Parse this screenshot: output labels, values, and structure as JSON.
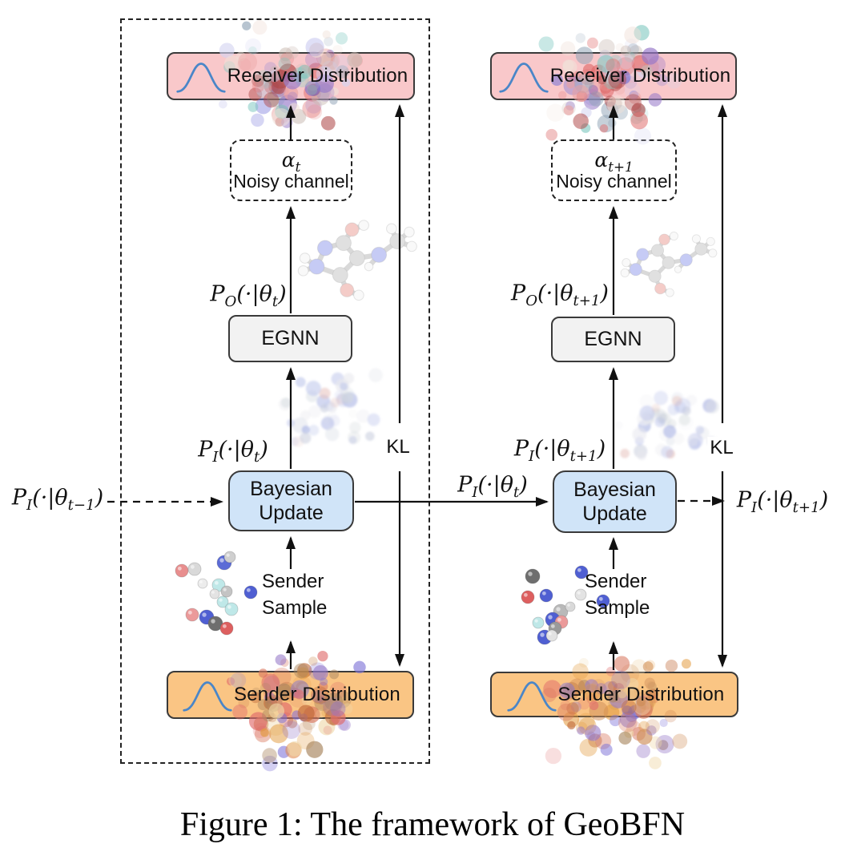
{
  "caption": "Figure 1: The framework of GeoBFN",
  "labels": {
    "receiver": "Receiver Distribution",
    "noisy_channel": "Noisy channel",
    "egnn": "EGNN",
    "bayesian_update": "Bayesian Update",
    "sender_sample": "Sender Sample",
    "sender": "Sender Distribution",
    "kl": "KL"
  },
  "math": {
    "alpha_t": [
      {
        "t": "α",
        "s": "t"
      }
    ],
    "alpha_t_plus_1": [
      {
        "t": "α",
        "s": "t+1"
      }
    ],
    "p_out_t": [
      {
        "t": "P",
        "s": "O"
      },
      {
        "t": "(·|θ",
        "s": "t"
      },
      {
        "t": ")"
      }
    ],
    "p_out_t_plus_1": [
      {
        "t": "P",
        "s": "O"
      },
      {
        "t": "(·|θ",
        "s": "t+1"
      },
      {
        "t": ")"
      }
    ],
    "p_in_t_minus_1": [
      {
        "t": "P",
        "s": "I"
      },
      {
        "t": "(·|θ",
        "s": "t−1"
      },
      {
        "t": ")"
      }
    ],
    "p_in_t": [
      {
        "t": "P",
        "s": "I"
      },
      {
        "t": "(·|θ",
        "s": "t"
      },
      {
        "t": ")"
      }
    ],
    "p_in_t_plus_1": [
      {
        "t": "P",
        "s": "I"
      },
      {
        "t": "(·|θ",
        "s": "t+1"
      },
      {
        "t": ")"
      }
    ]
  },
  "colors": {
    "receiver_fill": "#f9c8ca",
    "sender_fill": "#fac584",
    "update_fill": "#d0e4f8",
    "egnn_fill": "#f2f2f2",
    "curve": "#4a86c8",
    "line": "#111111"
  }
}
